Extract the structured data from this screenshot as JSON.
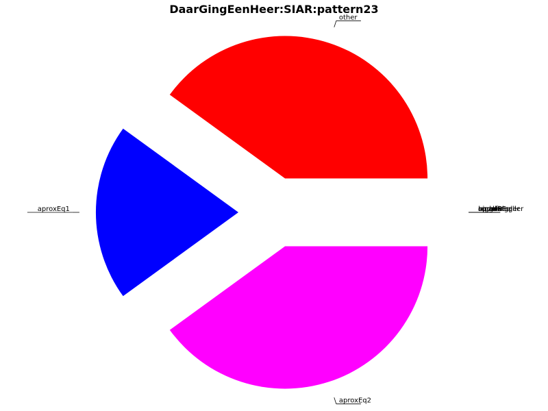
{
  "chart_data": {
    "type": "pie",
    "title": "DaarGingEenHeer:SIAR:pattern23",
    "slices": [
      {
        "label": "other",
        "value": 40,
        "color": "#ff0000",
        "exploded": true
      },
      {
        "label": "aproxEq1",
        "value": 20,
        "color": "#0000ff",
        "exploded": true
      },
      {
        "label": "aproxEq2",
        "value": 40,
        "color": "#ff00ff",
        "exploded": true
      }
    ],
    "zero_slices": [
      {
        "label": "bigger"
      },
      {
        "label": "smaller"
      },
      {
        "label": "equal"
      },
      {
        "label": "aproxBigger"
      },
      {
        "label": "aproxSmaller"
      },
      {
        "label": "approxEq"
      },
      {
        "label": "undefined"
      }
    ]
  }
}
